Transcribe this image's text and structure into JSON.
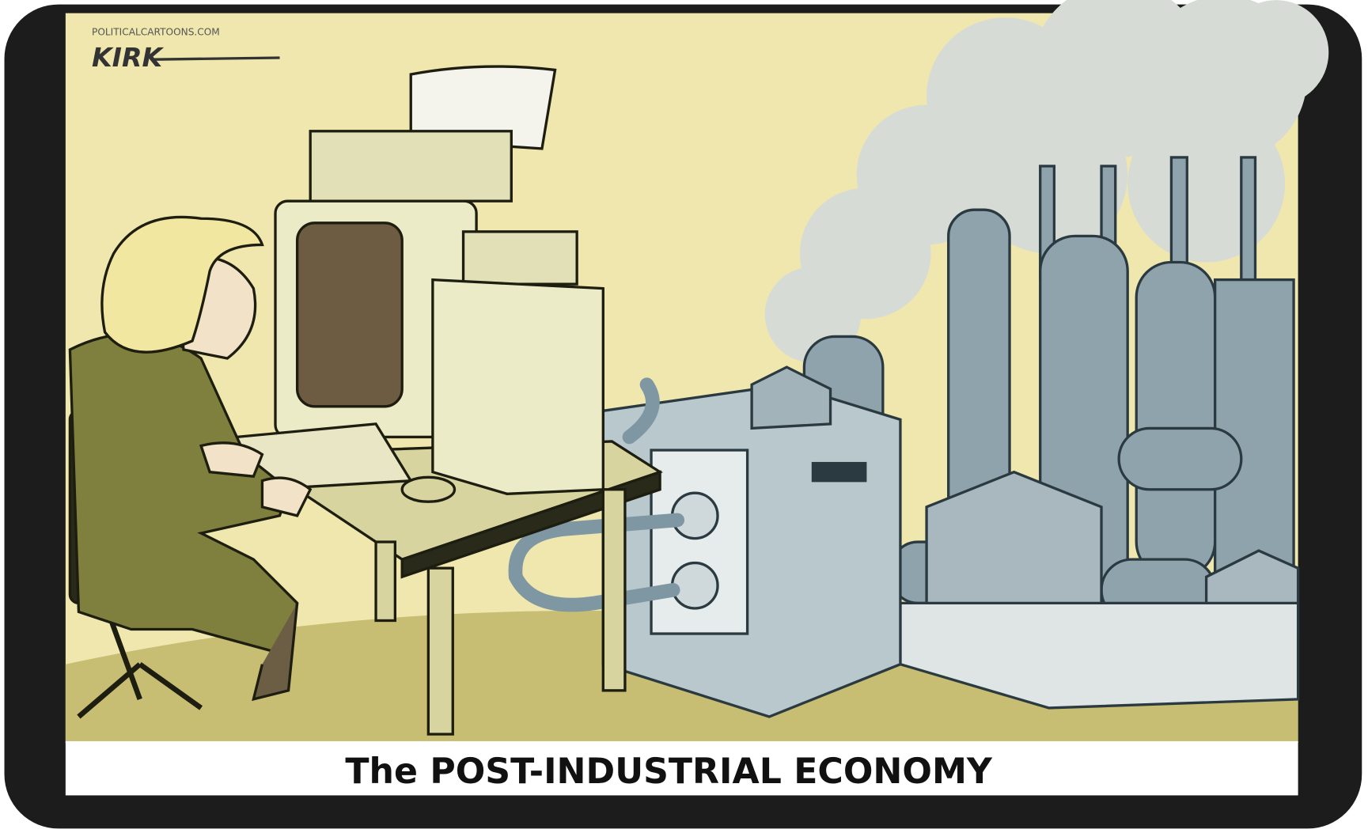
{
  "signature": {
    "site": "POLITICALCARTOONS.COM",
    "artist": "KIRK"
  },
  "caption": "The POST-INDUSTRIAL ECONOMY"
}
